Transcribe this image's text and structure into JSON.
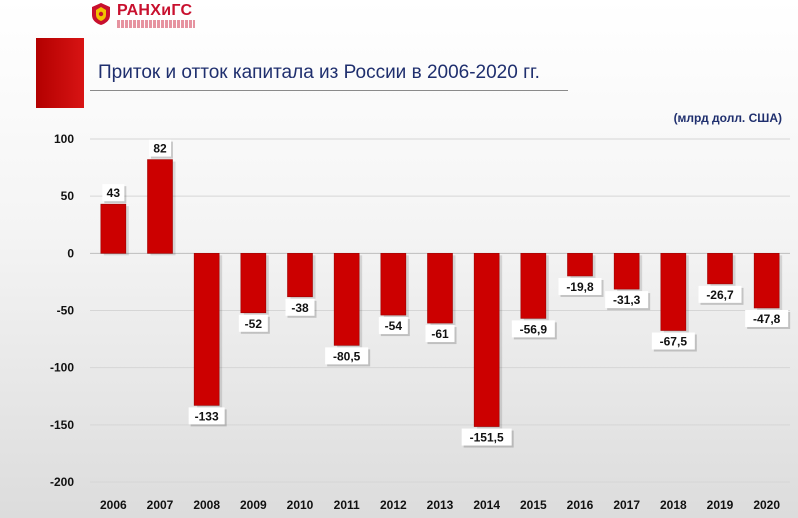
{
  "logo": {
    "text": "РАНХиГС"
  },
  "title": "Приток и отток капитала из России в 2006-2020 гг.",
  "units": "(млрд долл. США)",
  "colors": {
    "bar": "#cc0000",
    "bar_dark": "#9e0000",
    "accent": "#c8102e",
    "title": "#1f2f6e"
  },
  "chart_data": {
    "type": "bar",
    "title": "Приток и отток капитала из России в 2006-2020 гг.",
    "ylabel": "(млрд долл. США)",
    "ylim": [
      -200,
      100
    ],
    "yticks": [
      "100",
      "50",
      "0",
      "-50",
      "-100",
      "-150",
      "-200"
    ],
    "ytick_values": [
      100,
      50,
      0,
      -50,
      -100,
      -150,
      -200
    ],
    "grid": true,
    "categories": [
      "2006",
      "2007",
      "2008",
      "2009",
      "2010",
      "2011",
      "2012",
      "2013",
      "2014",
      "2015",
      "2016",
      "2017",
      "2018",
      "2019",
      "2020"
    ],
    "values": [
      43,
      82,
      -133,
      -52,
      -38,
      -80.5,
      -54,
      -61,
      -151.5,
      -56.9,
      -19.8,
      -31.3,
      -67.5,
      -26.7,
      -47.8
    ],
    "labels": [
      "43",
      "82",
      "-133",
      "-52",
      "-38",
      "-80,5",
      "-54",
      "-61",
      "-151,5",
      "-56,9",
      "-19,8",
      "-31,3",
      "-67,5",
      "-26,7",
      "-47,8"
    ]
  }
}
